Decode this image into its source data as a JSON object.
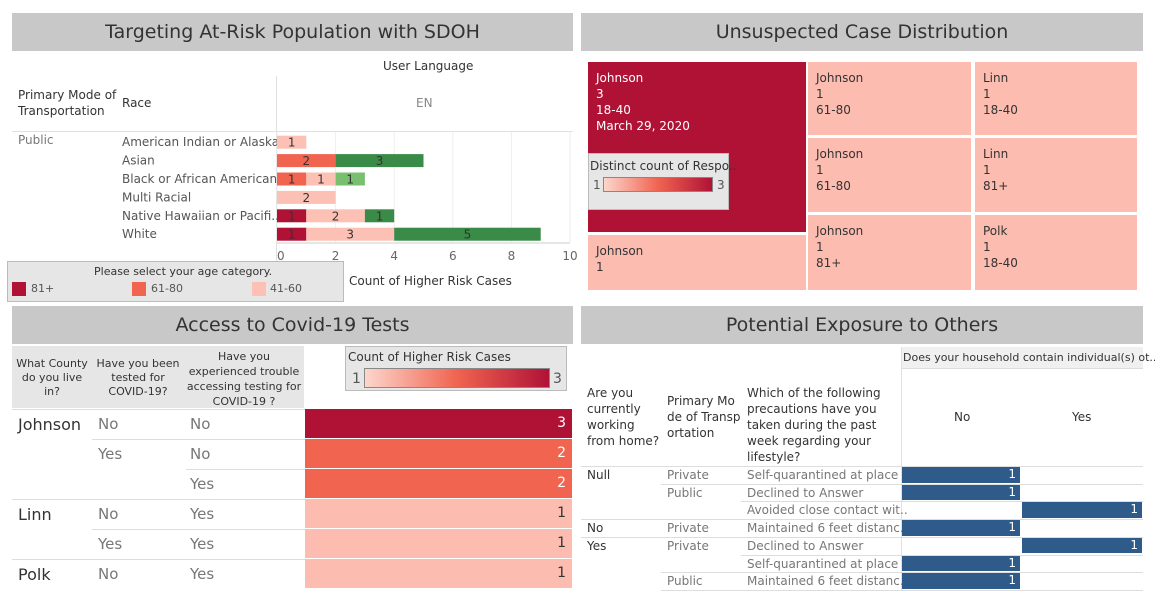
{
  "panel1": {
    "title": "Targeting At-Risk Population with SDOH",
    "col_header_top": "User Language",
    "col_header_value": "EN",
    "row_header_1": "Primary Mode of Transportation",
    "row_header_2": "Race",
    "mode_value": "Public",
    "xlabel": "Count of Higher Risk Cases",
    "legend_title": "Please select your age category.",
    "legend": [
      {
        "label": "81+",
        "color": "#b01236"
      },
      {
        "label": "61-80",
        "color": "#f06450"
      },
      {
        "label": "41-60",
        "color": "#fcc0b4"
      }
    ]
  },
  "chart_data": [
    {
      "type": "bar",
      "orientation": "horizontal",
      "stacked": true,
      "categories": [
        "American Indian or Alaska..",
        "Asian",
        "Black or African American",
        "Multi Racial",
        "Native Hawaiian or Pacifi..",
        "White"
      ],
      "series": [
        {
          "name": "81+",
          "color": "#b01236",
          "values": [
            0,
            0,
            0,
            0,
            1,
            1
          ]
        },
        {
          "name": "61-80",
          "color": "#f06450",
          "values": [
            0,
            2,
            1,
            0,
            0,
            0
          ]
        },
        {
          "name": "41-60",
          "color": "#fcc0b4",
          "values": [
            1,
            0,
            1,
            2,
            2,
            3
          ]
        },
        {
          "name": "",
          "color": "#3a8a48",
          "values": [
            0,
            3,
            0,
            0,
            1,
            5
          ]
        },
        {
          "name": "",
          "color": "#78c070",
          "values": [
            0,
            0,
            1,
            0,
            0,
            0
          ]
        }
      ],
      "xlabel": "Count of Higher Risk Cases",
      "xlim": [
        0,
        10
      ],
      "xticks": [
        0,
        2,
        4,
        6,
        8,
        10
      ]
    },
    {
      "type": "heatmap",
      "title": "Unsuspected Case Distribution",
      "cells": [
        {
          "lines": [
            "Johnson",
            "3",
            "18-40",
            "March 29, 2020"
          ],
          "value": 3
        },
        {
          "lines": [
            "Johnson",
            "1"
          ],
          "value": 1
        },
        {
          "lines": [
            "Johnson",
            "1",
            "61-80"
          ],
          "value": 1
        },
        {
          "lines": [
            "Johnson",
            "1",
            "61-80"
          ],
          "value": 1
        },
        {
          "lines": [
            "Johnson",
            "1",
            "81+"
          ],
          "value": 1
        },
        {
          "lines": [
            "Linn",
            "1",
            "18-40"
          ],
          "value": 1
        },
        {
          "lines": [
            "Linn",
            "1",
            "81+"
          ],
          "value": 1
        },
        {
          "lines": [
            "Polk",
            "1",
            "18-40"
          ],
          "value": 1
        }
      ],
      "legend_title": "Distinct count of Respo..",
      "legend_min": "1",
      "legend_max": "3"
    },
    {
      "type": "table",
      "title": "Access to Covid-19 Tests",
      "headers": [
        "What County do you live in?",
        "Have you been tested for COVID-19?",
        "Have you experienced trouble accessing testing for COVID-19 ?"
      ],
      "legend_title": "Count of Higher Risk Cases",
      "legend_min": "1",
      "legend_max": "3",
      "rows": [
        {
          "county": "Johnson",
          "tested": "No",
          "trouble": "No",
          "value": 3
        },
        {
          "county": "",
          "tested": "Yes",
          "trouble": "No",
          "value": 2
        },
        {
          "county": "",
          "tested": "",
          "trouble": "Yes",
          "value": 2
        },
        {
          "county": "Linn",
          "tested": "No",
          "trouble": "Yes",
          "value": 1
        },
        {
          "county": "",
          "tested": "Yes",
          "trouble": "Yes",
          "value": 1
        },
        {
          "county": "Polk",
          "tested": "No",
          "trouble": "Yes",
          "value": 1
        }
      ]
    },
    {
      "type": "table",
      "title": "Potential Exposure to Others",
      "col_header_top": "Does your household contain individual(s) ot..",
      "headers": [
        "Are you currently working from home?",
        "Primary Mode of Transportation",
        "Which of the following precautions have you taken during the past week regarding your lifestyle?"
      ],
      "columns": [
        "No",
        "Yes"
      ],
      "rows": [
        {
          "home": "Null",
          "mode": "Private",
          "precaution": "Self-quarantined at place ..",
          "no": 1,
          "yes": null
        },
        {
          "home": "",
          "mode": "Public",
          "precaution": "Declined to Answer",
          "no": 1,
          "yes": null
        },
        {
          "home": "",
          "mode": "",
          "precaution": "Avoided close contact wit..",
          "no": null,
          "yes": 1
        },
        {
          "home": "No",
          "mode": "Private",
          "precaution": "Maintained 6 feet distanc..",
          "no": 1,
          "yes": null
        },
        {
          "home": "Yes",
          "mode": "Private",
          "precaution": "Declined to Answer",
          "no": null,
          "yes": 1
        },
        {
          "home": "",
          "mode": "",
          "precaution": "Self-quarantined at place ..",
          "no": 1,
          "yes": null
        },
        {
          "home": "",
          "mode": "Public",
          "precaution": "Maintained 6 feet distanc..",
          "no": 1,
          "yes": null
        }
      ]
    }
  ]
}
